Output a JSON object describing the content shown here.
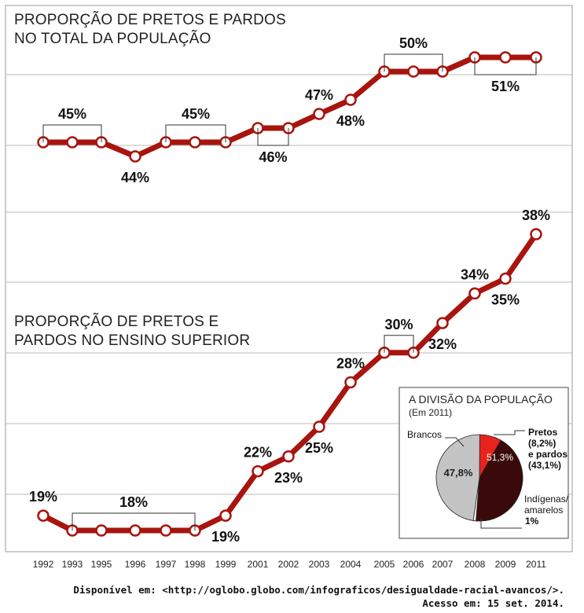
{
  "chart_data": [
    {
      "type": "line",
      "title": "PROPORÇÃO DE PRETOS E PARDOS\nNO TOTAL DA POPULAÇÃO",
      "x": [
        "1992",
        "1993",
        "1995",
        "1996",
        "1997",
        "1998",
        "1999",
        "2001",
        "2002",
        "2003",
        "2004",
        "2005",
        "2006",
        "2007",
        "2008",
        "2009",
        "2011"
      ],
      "values": [
        45,
        45,
        45,
        44,
        45,
        45,
        45,
        46,
        46,
        47,
        48,
        50,
        50,
        50,
        51,
        51,
        51
      ],
      "annotations": [
        {
          "text": "45%",
          "group": [
            "1992",
            "1995"
          ],
          "position": "above"
        },
        {
          "text": "44%",
          "group": [
            "1996"
          ],
          "position": "below"
        },
        {
          "text": "45%",
          "group": [
            "1997",
            "1999"
          ],
          "position": "above"
        },
        {
          "text": "46%",
          "group": [
            "2001",
            "2002"
          ],
          "position": "below"
        },
        {
          "text": "47%",
          "group": [
            "2003"
          ],
          "position": "above"
        },
        {
          "text": "48%",
          "group": [
            "2004"
          ],
          "position": "below"
        },
        {
          "text": "50%",
          "group": [
            "2005",
            "2007"
          ],
          "position": "above"
        },
        {
          "text": "51%",
          "group": [
            "2008",
            "2011"
          ],
          "position": "below"
        }
      ]
    },
    {
      "type": "line",
      "title": "PROPORÇÃO DE PRETOS E\nPARDOS NO ENSINO SUPERIOR",
      "x": [
        "1992",
        "1993",
        "1995",
        "1996",
        "1997",
        "1998",
        "1999",
        "2001",
        "2002",
        "2003",
        "2004",
        "2005",
        "2006",
        "2007",
        "2008",
        "2009",
        "2011"
      ],
      "values": [
        19,
        18,
        18,
        18,
        18,
        18,
        19,
        22,
        23,
        25,
        28,
        30,
        30,
        32,
        34,
        35,
        38
      ],
      "annotations": [
        {
          "text": "19%",
          "group": [
            "1992"
          ],
          "position": "above"
        },
        {
          "text": "18%",
          "group": [
            "1993",
            "1998"
          ],
          "position": "above"
        },
        {
          "text": "19%",
          "group": [
            "1999"
          ],
          "position": "below"
        },
        {
          "text": "22%",
          "group": [
            "2001"
          ],
          "position": "above"
        },
        {
          "text": "23%",
          "group": [
            "2002"
          ],
          "position": "below"
        },
        {
          "text": "25%",
          "group": [
            "2003"
          ],
          "position": "below"
        },
        {
          "text": "28%",
          "group": [
            "2004"
          ],
          "position": "above"
        },
        {
          "text": "30%",
          "group": [
            "2005",
            "2006"
          ],
          "position": "above"
        },
        {
          "text": "32%",
          "group": [
            "2007"
          ],
          "position": "below"
        },
        {
          "text": "34%",
          "group": [
            "2008"
          ],
          "position": "above"
        },
        {
          "text": "35%",
          "group": [
            "2009"
          ],
          "position": "below"
        },
        {
          "text": "38%",
          "group": [
            "2011"
          ],
          "position": "above"
        }
      ]
    },
    {
      "type": "pie",
      "title": "A DIVISÃO DA POPULAÇÃO",
      "subtitle": "(Em 2011)",
      "slices": [
        {
          "label": "Pretos",
          "value": 8.2,
          "color": "#e8231e"
        },
        {
          "label": "pardos",
          "value": 43.1,
          "color": "#3a0a0a"
        },
        {
          "label": "Indígenas/ amarelos",
          "value": 1,
          "color": "#ffffff"
        },
        {
          "label": "Brancos",
          "value": 47.8,
          "color": "#c4c4c4"
        }
      ],
      "inner_labels": {
        "black_brown": "51,3%",
        "white": "47,8%"
      },
      "legend_text": {
        "brancos": "Brancos",
        "pretos_line1": "Pretos",
        "pretos_line2": "(8,2%)",
        "pretos_line3": "e pardos",
        "pretos_line4": "(43,1%)",
        "indigenas_line1": "Indígenas/",
        "indigenas_line2": "amarelos",
        "indigenas_line3": "1%"
      }
    }
  ],
  "colors": {
    "line": "#a8140e",
    "marker_fill": "#ffffff",
    "grid": "#bbbbbb",
    "frame": "#999999"
  },
  "source": {
    "line1": "Disponível em: <http://oglobo.globo.com/infograficos/desigualdade-racial-avancos/>.",
    "line2": "Acesso em: 15 set. 2014."
  },
  "labels": {
    "title1_line1": "PROPORÇÃO DE PRETOS E PARDOS",
    "title1_line2": "NO TOTAL DA POPULAÇÃO",
    "title2_line1": "PROPORÇÃO DE PRETOS E",
    "title2_line2": "PARDOS NO ENSINO SUPERIOR"
  }
}
